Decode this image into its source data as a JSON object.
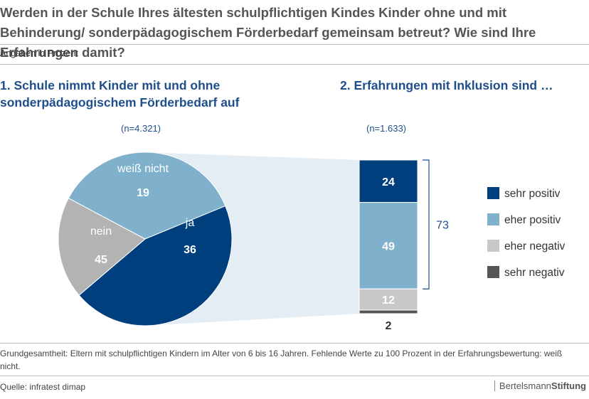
{
  "title": "Werden in der Schule Ihres ältesten schulpflichtigen Kindes Kinder ohne und mit Behinderung/ sonderpädagogischem Förderbedarf gemeinsam betreut? Wie sind Ihre Erfahrungen damit?",
  "subnote": "Angaben in Prozent",
  "footnote": "Grundgesamtheit: Eltern mit schulpflichtigen Kindern im Alter von 6 bis 16 Jahren. Fehlende Werte zu 100 Prozent in der Erfahrungsbewertung: weiß nicht.",
  "source": "Quelle: infratest dimap",
  "logo": {
    "part1": "Bertelsmann",
    "part2": "Stiftung"
  },
  "colors": {
    "dark_blue": "#003f7d",
    "light_blue": "#7fb1cc",
    "gray": "#b3b3b3",
    "dark_gray": "#555555",
    "connector": "#e3edf3",
    "heading_blue": "#1f4e8c"
  },
  "chart_data": [
    {
      "type": "pie",
      "title": "1. Schule nimmt Kinder mit und ohne sonderpädagogischem Förderbedarf auf",
      "n_label": "(n=4.321)",
      "slices": [
        {
          "label": "ja",
          "value": 36,
          "color": "#7fb1cc"
        },
        {
          "label": "nein",
          "value": 45,
          "color": "#003f7d"
        },
        {
          "label": "weiß nicht",
          "value": 19,
          "color": "#b3b3b3"
        }
      ]
    },
    {
      "type": "bar",
      "stacked": true,
      "title": "2. Erfahrungen mit Inklusion sind …",
      "n_label": "(n=1.633)",
      "series": [
        {
          "name": "sehr positiv",
          "value": 24,
          "color": "#003f7d"
        },
        {
          "name": "eher positiv",
          "value": 49,
          "color": "#7fb1cc"
        },
        {
          "name": "eher negativ",
          "value": 12,
          "color": "#c8c8c8"
        },
        {
          "name": "sehr negativ",
          "value": 2,
          "color": "#555555"
        }
      ],
      "bracket_total": "73",
      "legend_position": "right"
    }
  ]
}
